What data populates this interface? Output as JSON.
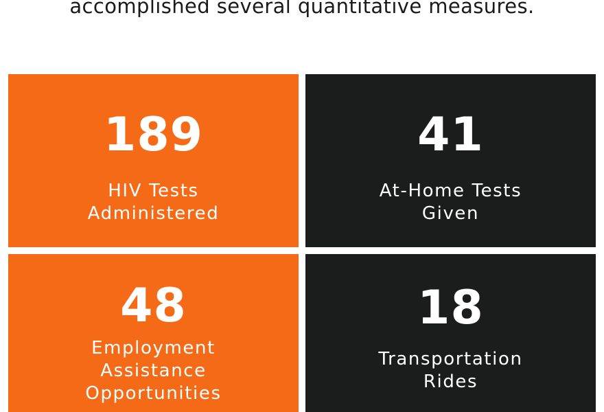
{
  "heading": "accomplished several quantitative measures.",
  "stats": [
    {
      "value": "189",
      "label_lines": [
        "HIV Tests",
        "Administered"
      ]
    },
    {
      "value": "41",
      "label_lines": [
        "At-Home Tests",
        "Given"
      ]
    },
    {
      "value": "48",
      "label_lines": [
        "Employment",
        "Assistance",
        "Opportunities"
      ]
    },
    {
      "value": "18",
      "label_lines": [
        "Transportation",
        "Rides"
      ]
    }
  ],
  "colors": {
    "orange": "#f46a17",
    "dark": "#1b1c1c",
    "text_light": "#ffffff",
    "text_dark": "#1a1a1a"
  }
}
